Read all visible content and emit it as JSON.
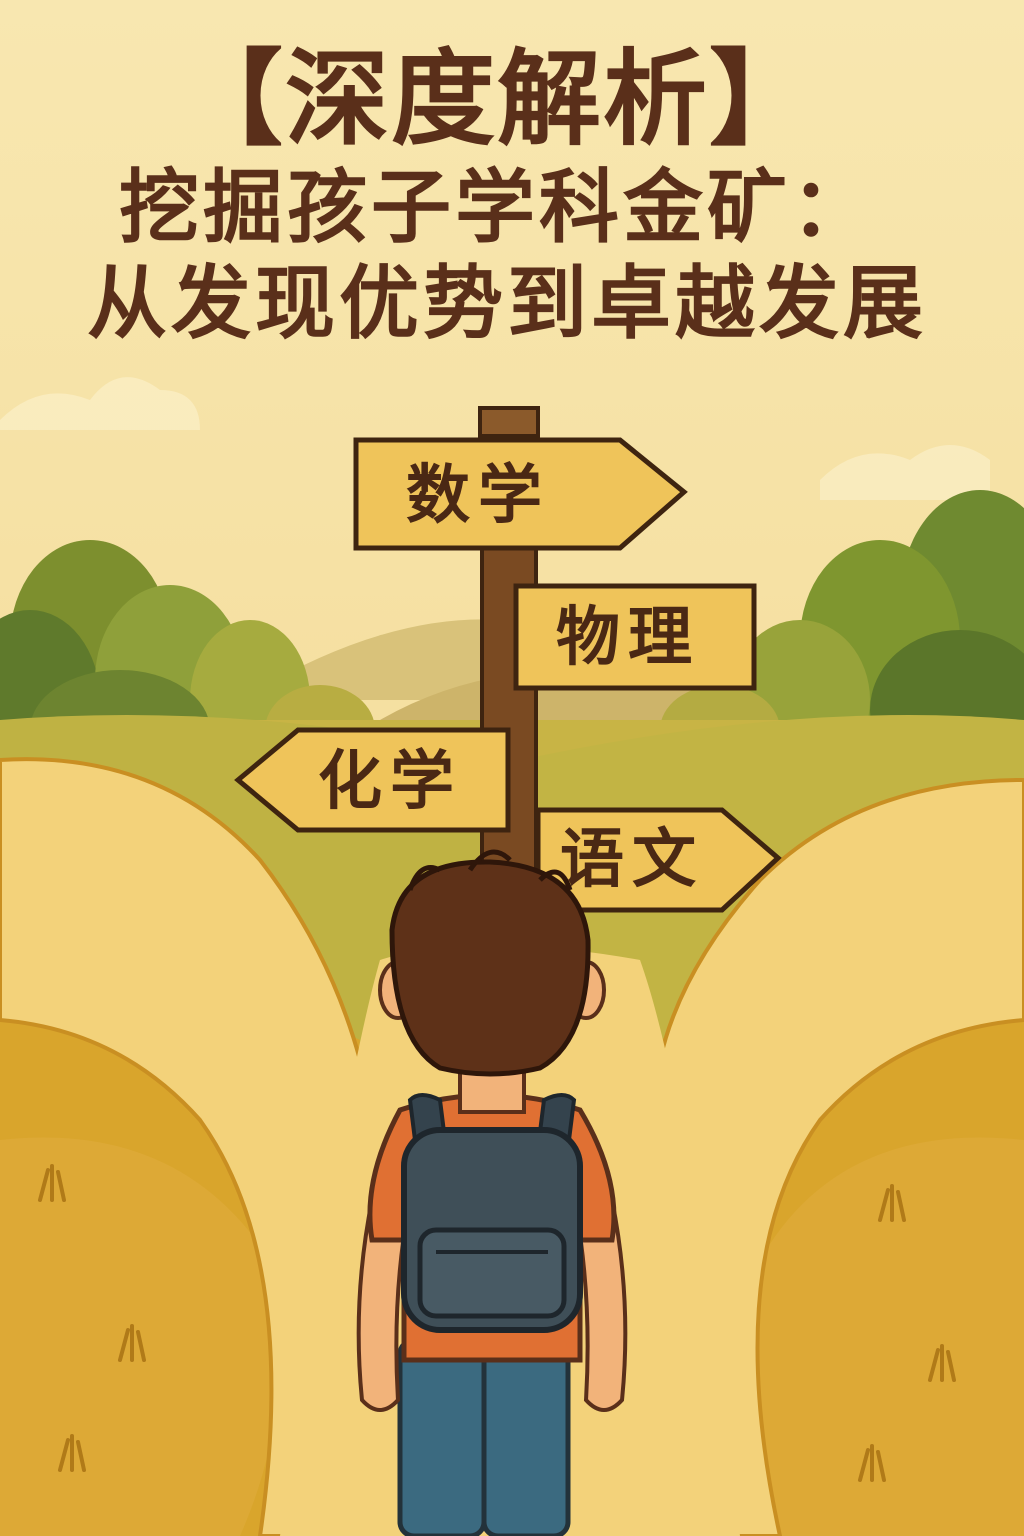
{
  "title": {
    "line1": "【深度解析】",
    "line2": "挖掘孩子学科金矿：",
    "line3": "从发现优势到卓越发展"
  },
  "signs": {
    "math": "数学",
    "physics": "物理",
    "chemistry": "化学",
    "chinese": "语文"
  },
  "colors": {
    "background": "#f7e3a6",
    "title": "#5a2f1a",
    "sign": "#efc45a",
    "path": "#f3d27a",
    "grass": "#d9a52c"
  }
}
